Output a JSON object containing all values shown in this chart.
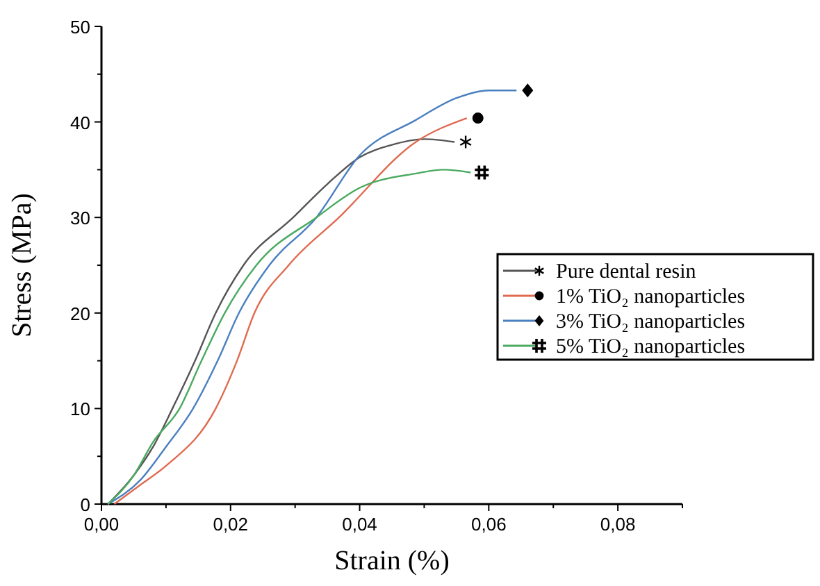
{
  "chart_data": {
    "type": "line",
    "xlabel": "Strain (%)",
    "ylabel": "Stress (MPa)",
    "xlim": [
      0,
      0.09
    ],
    "ylim": [
      0,
      50
    ],
    "xticks": [
      {
        "value": 0,
        "label": "0,00"
      },
      {
        "value": 0.01,
        "label": null
      },
      {
        "value": 0.02,
        "label": "0,02"
      },
      {
        "value": 0.03,
        "label": null
      },
      {
        "value": 0.04,
        "label": "0,04"
      },
      {
        "value": 0.05,
        "label": null
      },
      {
        "value": 0.06,
        "label": "0,06"
      },
      {
        "value": 0.07,
        "label": null
      },
      {
        "value": 0.08,
        "label": "0,08"
      },
      {
        "value": 0.09,
        "label": null
      }
    ],
    "yticks": [
      0,
      {
        "value": 5,
        "label": null
      },
      10,
      {
        "value": 15,
        "label": null
      },
      20,
      {
        "value": 25,
        "label": null
      },
      30,
      {
        "value": 35,
        "label": null
      },
      40,
      {
        "value": 45,
        "label": null
      },
      50
    ],
    "grid": false,
    "legend": "right",
    "line_style": "solid",
    "series": [
      {
        "name": "Pure dental resin",
        "color": "#555555",
        "x": [
          0.001,
          0.005,
          0.008,
          0.011,
          0.0145,
          0.0177,
          0.022,
          0.0297,
          0.035,
          0.04,
          0.045,
          0.05,
          0.0547
        ],
        "values": [
          0,
          3,
          6,
          10,
          15,
          20,
          25,
          30,
          33.5,
          36.3,
          37.6,
          38.2,
          37.9
        ]
      },
      {
        "name": "1% TiO₂ nanoparticles",
        "color": "#e06a50",
        "x": [
          0.002,
          0.006,
          0.01,
          0.0177,
          0.021,
          0.0237,
          0.029,
          0.0368,
          0.0487,
          0.0566
        ],
        "values": [
          0,
          2,
          4,
          10,
          15,
          20,
          25,
          30,
          37.9,
          40.4
        ]
      },
      {
        "name": "3% TiO₂ nanoparticles",
        "color": "#4a7fc0",
        "x": [
          0.001,
          0.006,
          0.01,
          0.0142,
          0.018,
          0.0213,
          0.026,
          0.0333,
          0.04,
          0.0487,
          0.055,
          0.06,
          0.0643
        ],
        "values": [
          0,
          2.5,
          6,
          10,
          15,
          20,
          25,
          30,
          36.5,
          40.2,
          42.5,
          43.3,
          43.3
        ]
      },
      {
        "name": "5% TiO₂ nanoparticles",
        "color": "#4aaa60",
        "x": [
          0.001,
          0.005,
          0.008,
          0.0121,
          0.0155,
          0.0191,
          0.024,
          0.0333,
          0.04,
          0.0487,
          0.053,
          0.0572
        ],
        "values": [
          0,
          3,
          6.5,
          10,
          15,
          20,
          25,
          30,
          33.1,
          34.6,
          35,
          34.7
        ]
      }
    ]
  }
}
